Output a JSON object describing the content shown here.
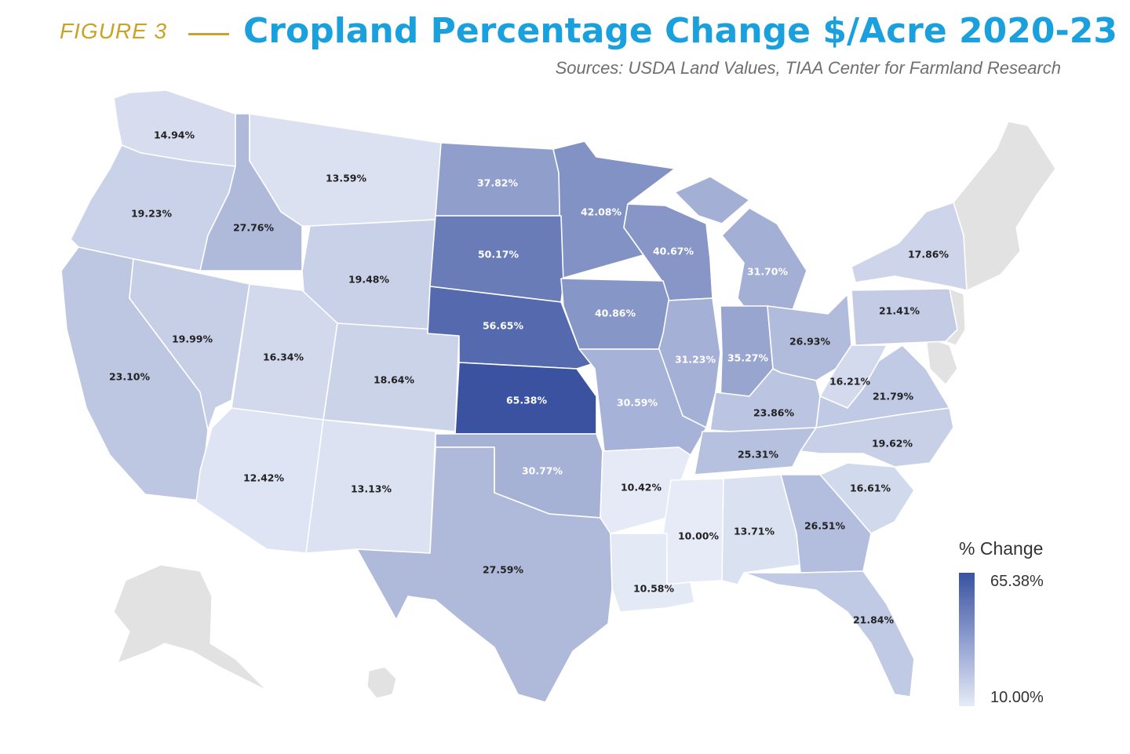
{
  "header": {
    "figure_label": "FIGURE 3",
    "title": "Cropland Percentage Change $/Acre 2020-23",
    "source": "Sources: USDA Land Values, TIAA Center for Farmland Research"
  },
  "legend": {
    "title": "% Change",
    "max_label": "65.38%",
    "min_label": "10.00%",
    "max_value": 65.38,
    "min_value": 10.0,
    "color_max": "#3a52a0",
    "color_min": "#e6ebf7"
  },
  "no_data_color": "#e2e2e2",
  "states": [
    {
      "state": "Washington",
      "label": "14.94%",
      "value": 14.94
    },
    {
      "state": "Oregon",
      "label": "19.23%",
      "value": 19.23
    },
    {
      "state": "Idaho",
      "label": "27.76%",
      "value": 27.76
    },
    {
      "state": "Montana",
      "label": "13.59%",
      "value": 13.59
    },
    {
      "state": "North Dakota",
      "label": "37.82%",
      "value": 37.82
    },
    {
      "state": "Minnesota",
      "label": "42.08%",
      "value": 42.08
    },
    {
      "state": "Wisconsin",
      "label": "40.67%",
      "value": 40.67
    },
    {
      "state": "Michigan",
      "label": "31.70%",
      "value": 31.7
    },
    {
      "state": "New York",
      "label": "17.86%",
      "value": 17.86
    },
    {
      "state": "Wyoming",
      "label": "19.48%",
      "value": 19.48
    },
    {
      "state": "South Dakota",
      "label": "50.17%",
      "value": 50.17
    },
    {
      "state": "Iowa",
      "label": "40.86%",
      "value": 40.86
    },
    {
      "state": "Pennsylvania",
      "label": "21.41%",
      "value": 21.41
    },
    {
      "state": "California",
      "label": "23.10%",
      "value": 23.1
    },
    {
      "state": "Nevada",
      "label": "19.99%",
      "value": 19.99
    },
    {
      "state": "Utah",
      "label": "16.34%",
      "value": 16.34
    },
    {
      "state": "Colorado",
      "label": "18.64%",
      "value": 18.64
    },
    {
      "state": "Nebraska",
      "label": "56.65%",
      "value": 56.65
    },
    {
      "state": "Illinois",
      "label": "31.23%",
      "value": 31.23
    },
    {
      "state": "Indiana",
      "label": "35.27%",
      "value": 35.27
    },
    {
      "state": "Ohio",
      "label": "26.93%",
      "value": 26.93
    },
    {
      "state": "West Virginia",
      "label": "16.21%",
      "value": 16.21
    },
    {
      "state": "Virginia",
      "label": "21.79%",
      "value": 21.79
    },
    {
      "state": "Kansas",
      "label": "65.38%",
      "value": 65.38
    },
    {
      "state": "Missouri",
      "label": "30.59%",
      "value": 30.59
    },
    {
      "state": "Kentucky",
      "label": "23.86%",
      "value": 23.86
    },
    {
      "state": "Tennessee",
      "label": "25.31%",
      "value": 25.31
    },
    {
      "state": "North Carolina",
      "label": "19.62%",
      "value": 19.62
    },
    {
      "state": "Arizona",
      "label": "12.42%",
      "value": 12.42
    },
    {
      "state": "New Mexico",
      "label": "13.13%",
      "value": 13.13
    },
    {
      "state": "Oklahoma",
      "label": "30.77%",
      "value": 30.77
    },
    {
      "state": "Arkansas",
      "label": "10.42%",
      "value": 10.42
    },
    {
      "state": "South Carolina",
      "label": "16.61%",
      "value": 16.61
    },
    {
      "state": "Mississippi",
      "label": "10.00%",
      "value": 10.0
    },
    {
      "state": "Alabama",
      "label": "13.71%",
      "value": 13.71
    },
    {
      "state": "Georgia",
      "label": "26.51%",
      "value": 26.51
    },
    {
      "state": "Texas",
      "label": "27.59%",
      "value": 27.59
    },
    {
      "state": "Louisiana",
      "label": "10.58%",
      "value": 10.58
    },
    {
      "state": "Florida",
      "label": "21.84%",
      "value": 21.84
    }
  ]
}
